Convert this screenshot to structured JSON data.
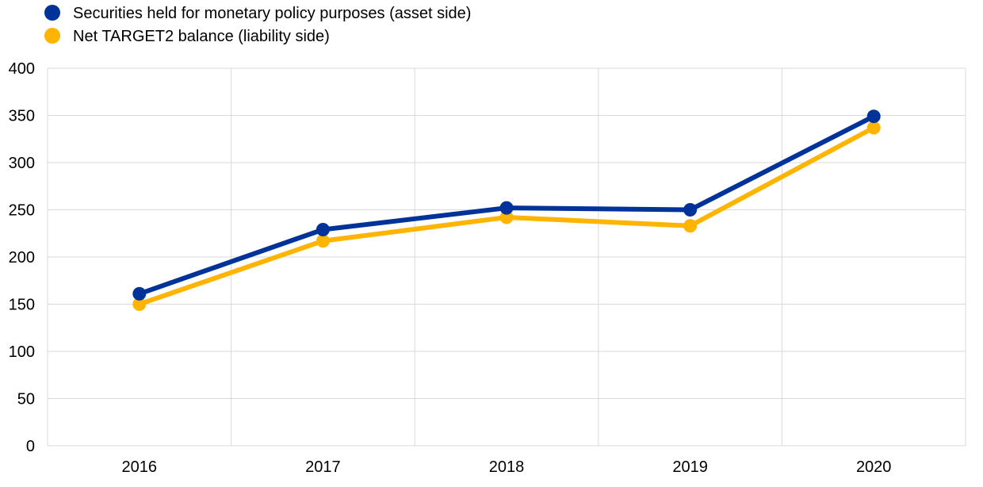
{
  "chart_data": {
    "type": "line",
    "title": "",
    "xlabel": "",
    "ylabel": "",
    "categories": [
      "2016",
      "2017",
      "2018",
      "2019",
      "2020"
    ],
    "ylim": [
      0,
      400
    ],
    "yticks": [
      0,
      50,
      100,
      150,
      200,
      250,
      300,
      350,
      400
    ],
    "grid": true,
    "legend_position": "top-left",
    "series": [
      {
        "name": "Securities held for monetary policy purposes (asset side)",
        "color": "#003399",
        "values": [
          161,
          229,
          252,
          250,
          349
        ]
      },
      {
        "name": "Net TARGET2 balance (liability side)",
        "color": "#FFB400",
        "values": [
          150,
          217,
          242,
          233,
          337
        ]
      }
    ]
  }
}
